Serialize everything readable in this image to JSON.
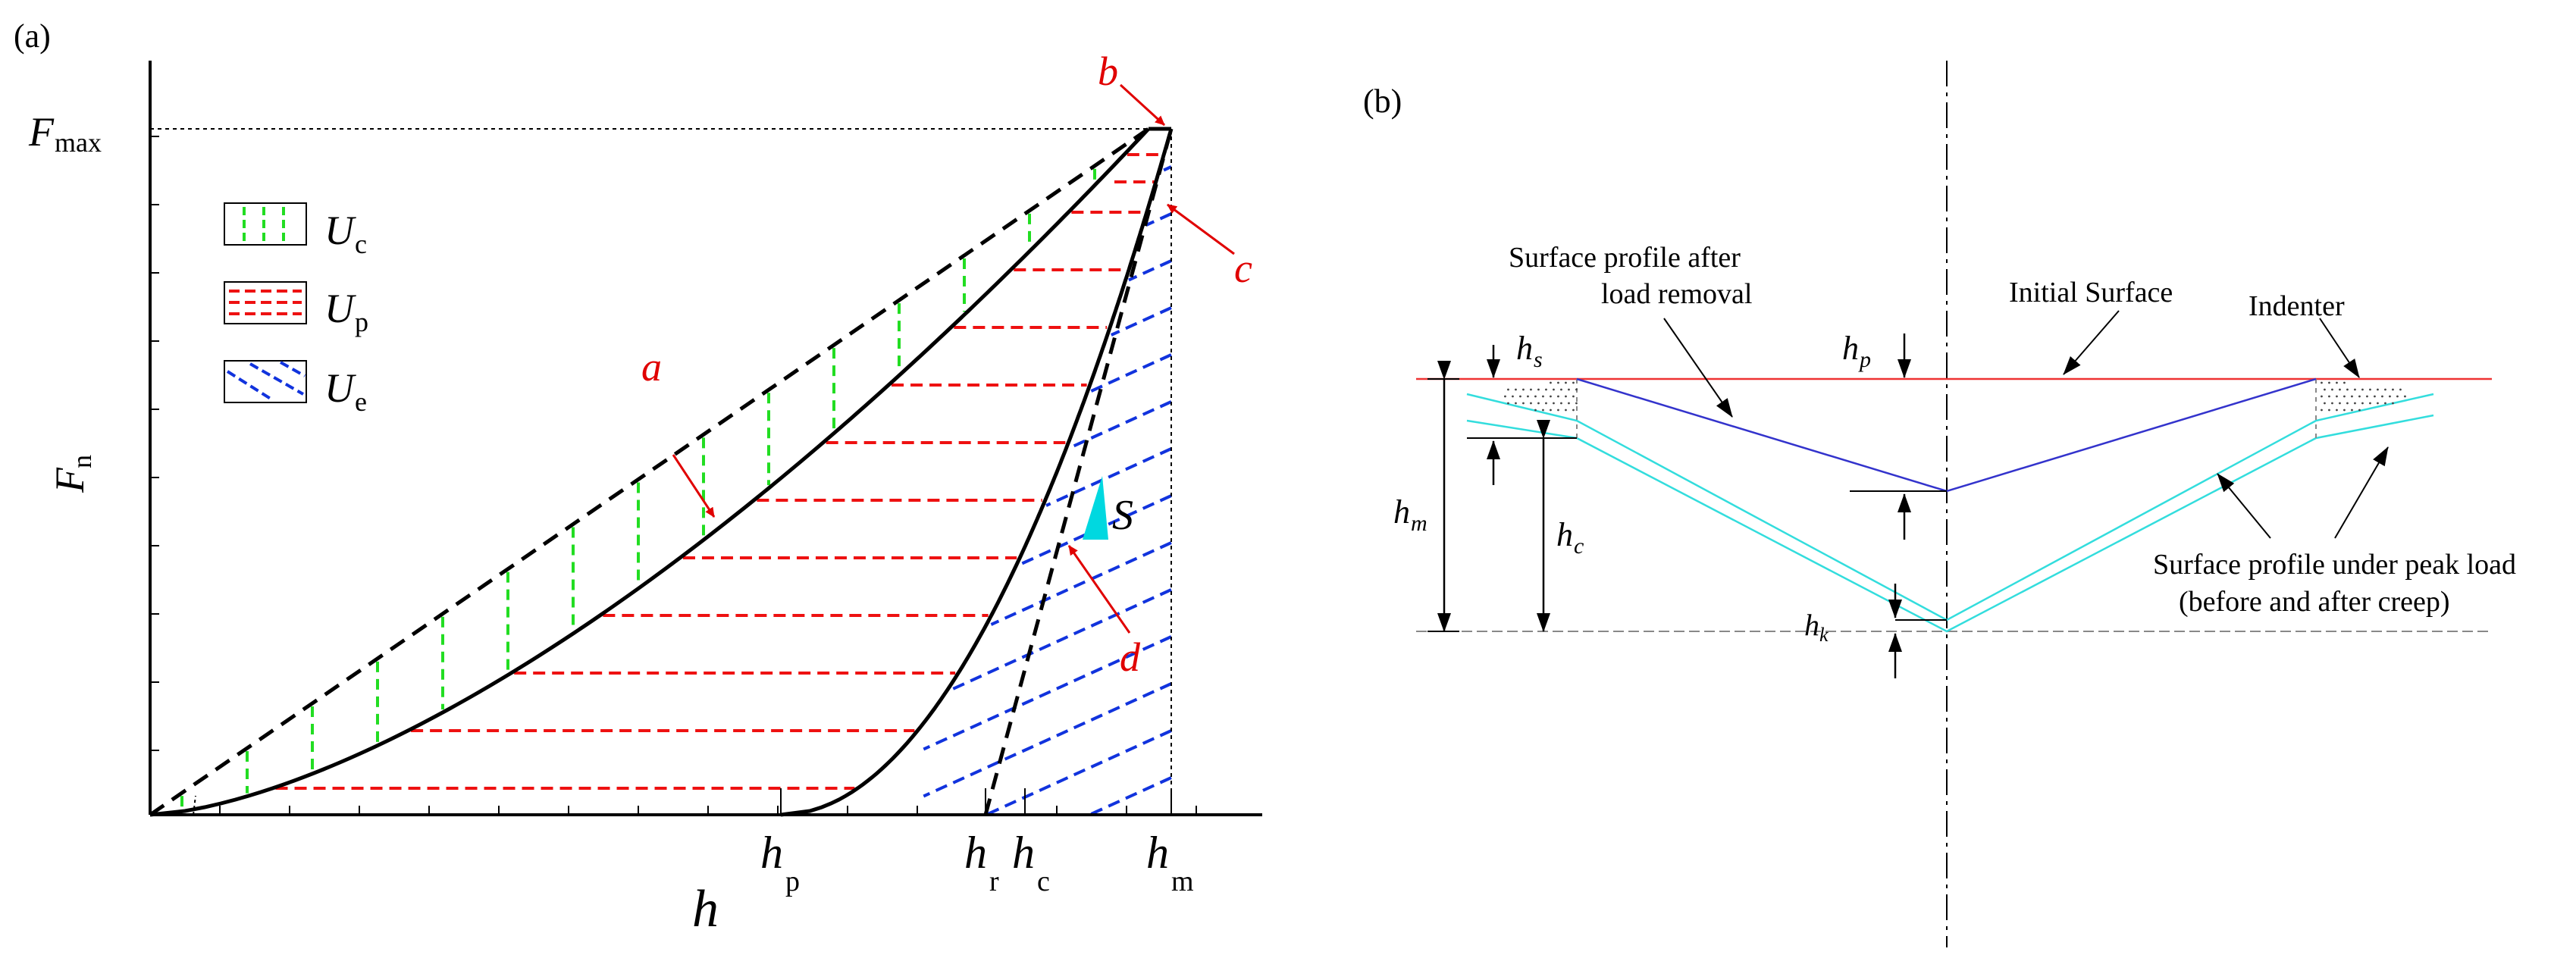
{
  "panel_a": {
    "panel_label": "(a)",
    "x_axis_label": "h",
    "y_axis_label_main": "F",
    "y_axis_label_sub": "n",
    "fmax_main": "F",
    "fmax_sub": "max",
    "ticks": [
      {
        "main": "h",
        "sub": "p"
      },
      {
        "main": "h",
        "sub": "r"
      },
      {
        "main": "h",
        "sub": "c"
      },
      {
        "main": "h",
        "sub": "m"
      }
    ],
    "legend": [
      {
        "main": "U",
        "sub": "c",
        "color": "#22dd22",
        "pattern": "vertical dashes"
      },
      {
        "main": "U",
        "sub": "p",
        "color": "#ee1111",
        "pattern": "horizontal dashes"
      },
      {
        "main": "U",
        "sub": "e",
        "color": "#1133dd",
        "pattern": "diagonal dashes"
      }
    ],
    "point_labels": [
      "a",
      "b",
      "c",
      "d"
    ],
    "s_label": "S",
    "colors": {
      "curve": "#000000",
      "pointer": "#e00000",
      "s_arrow": "#00d8e0"
    }
  },
  "panel_b": {
    "panel_label": "(b)",
    "annotations": {
      "surface_after_removal_line1": "Surface profile after",
      "surface_after_removal_line2": "load removal",
      "initial_surface": "Initial Surface",
      "indenter": "Indenter",
      "peak_load_line1": "Surface profile under peak load",
      "peak_load_line2": "(before and after creep)"
    },
    "dims": [
      {
        "main": "h",
        "sub": "s"
      },
      {
        "main": "h",
        "sub": "p"
      },
      {
        "main": "h",
        "sub": "m"
      },
      {
        "main": "h",
        "sub": "c"
      },
      {
        "main": "h",
        "sub": "k"
      }
    ],
    "colors": {
      "initial_surface": "#ee3333",
      "removal_profile": "#3333cc",
      "peak_profile": "#33dddd"
    }
  }
}
